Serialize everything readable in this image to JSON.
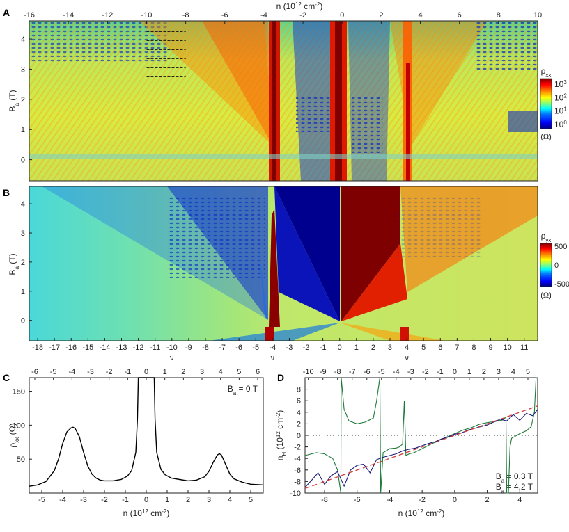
{
  "colors": {
    "jet": [
      "#00007f",
      "#0000ff",
      "#007fff",
      "#00ffff",
      "#7fff7f",
      "#ffff00",
      "#ff7f00",
      "#ff0000",
      "#7f0000"
    ],
    "green_trace": "#1f7a3a",
    "blue_trace": "#1a1a7a",
    "fit_line": "#d23a3a"
  },
  "chart_data": [
    {
      "panel": "A",
      "type": "heatmap",
      "title": "",
      "xlabel_top": "n (10^12 cm^-2)",
      "ylabel": "B_a (T)",
      "x_top_ticks": [
        "-16",
        "-14",
        "-12",
        "-10",
        "-8",
        "-6",
        "-4",
        "-2",
        "0",
        "2",
        "4",
        "6",
        "8",
        "10"
      ],
      "x_top_range": [
        -16,
        10
      ],
      "y_ticks": [
        "0",
        "1",
        "2",
        "3",
        "4"
      ],
      "ylim": [
        -0.7,
        4.6
      ],
      "colorbar": {
        "label": "ρxx",
        "unit": "(Ω)",
        "ticks": [
          "10^3",
          "10^2",
          "10^1",
          "10^0"
        ],
        "scale": "log"
      },
      "features": {
        "resistive_peaks_n": [
          -3.6,
          0,
          3.6
        ],
        "dashed_marker_levels_T": [
          2.75,
          3.05,
          3.35,
          3.65,
          3.95,
          4.25
        ]
      }
    },
    {
      "panel": "B",
      "type": "heatmap",
      "title": "",
      "ylabel": "B_a (T)",
      "xlabel": "ν",
      "x_ticks": [
        "-18",
        "-17",
        "-16",
        "-15",
        "-14",
        "-13",
        "-12",
        "-11",
        "-10",
        "-9",
        "-8",
        "-7",
        "-6",
        "-5",
        "-4",
        "-3",
        "-2",
        "-1",
        "0",
        "1",
        "2",
        "3",
        "4",
        "5",
        "6",
        "7",
        "8",
        "9",
        "10",
        "11"
      ],
      "x_range": [
        -18.5,
        11.8
      ],
      "y_ticks": [
        "0",
        "1",
        "2",
        "3",
        "4"
      ],
      "ylim": [
        -0.7,
        4.6
      ],
      "colorbar": {
        "label": "ρyx",
        "unit": "(Ω)",
        "ticks": [
          "500",
          "0",
          "-500"
        ],
        "range": [
          -500,
          500
        ]
      }
    },
    {
      "panel": "C",
      "type": "line",
      "title": "",
      "xlabel": "n (10^12 cm^-2)",
      "ylabel": "ρxx (Ω)",
      "x2label": "ν",
      "annotation": "B_a = 0 T",
      "x_ticks": [
        "-5",
        "-4",
        "-3",
        "-2",
        "-1",
        "0",
        "1",
        "2",
        "3",
        "4",
        "5"
      ],
      "x2_ticks": [
        "-6",
        "-5",
        "-4",
        "-3",
        "-2",
        "-1",
        "0",
        "1",
        "2",
        "3",
        "4",
        "5",
        "6"
      ],
      "y_ticks": [
        "50",
        "100",
        "150"
      ],
      "xlim": [
        -5.6,
        5.6
      ],
      "ylim": [
        0,
        170
      ],
      "series": [
        {
          "x": [
            -5.6,
            -5.2,
            -4.8,
            -4.4,
            -4.2,
            -4.0,
            -3.8,
            -3.6,
            -3.5,
            -3.4,
            -3.2,
            -3.0,
            -2.8,
            -2.6,
            -2.4,
            -2.2,
            -2.0,
            -1.6,
            -1.2,
            -0.9,
            -0.7,
            -0.5,
            -0.42,
            -0.38,
            0.38,
            0.42,
            0.5,
            0.7,
            0.9,
            1.2,
            1.6,
            2.0,
            2.4,
            2.8,
            3.0,
            3.2,
            3.4,
            3.5,
            3.6,
            3.8,
            4.0,
            4.2,
            4.6,
            5.0,
            5.6
          ],
          "values": [
            10,
            12,
            17,
            33,
            50,
            73,
            90,
            96,
            97,
            95,
            83,
            60,
            40,
            28,
            22,
            19,
            18,
            18,
            20,
            25,
            33,
            60,
            110,
            170,
            170,
            110,
            60,
            35,
            27,
            22,
            20,
            18,
            19,
            24,
            32,
            45,
            56,
            58,
            56,
            42,
            28,
            21,
            16,
            13,
            12
          ]
        }
      ]
    },
    {
      "panel": "D",
      "type": "line",
      "title": "",
      "xlabel": "n (10^12 cm^-2)",
      "ylabel": "n_H (10^12 cm^-2)",
      "x2label": "ν",
      "x_ticks": [
        "-8",
        "-6",
        "-4",
        "-2",
        "0",
        "2",
        "4"
      ],
      "x2_ticks": [
        "-10",
        "-9",
        "-8",
        "-7",
        "-6",
        "-5",
        "-4",
        "-3",
        "-2",
        "-1",
        "0",
        "1",
        "2",
        "3",
        "4",
        "5"
      ],
      "y_ticks": [
        "-10",
        "-8",
        "-6",
        "-4",
        "-2",
        "0",
        "2",
        "4",
        "6",
        "8"
      ],
      "xlim": [
        -9.2,
        5.1
      ],
      "ylim": [
        -10,
        10
      ],
      "legend": [
        "B_a = 0.3 T",
        "B_a = 4.2 T"
      ],
      "series": [
        {
          "name": "B_a = 0.3 T",
          "x": [
            -9.2,
            -8.5,
            -8.0,
            -7.5,
            -7.2,
            -7.0,
            -6.98,
            -6.8,
            -6.5,
            -6.0,
            -5.5,
            -5.0,
            -4.8,
            -4.6,
            -4.55,
            -4.4,
            -4.0,
            -3.6,
            -3.4,
            -3.2,
            -3.1,
            -3.0,
            -2.8,
            -2.5,
            -2.0,
            -1.5,
            -1.0,
            -0.5,
            0.0,
            0.5,
            1.0,
            1.5,
            2.0,
            2.5,
            3.0,
            3.15,
            3.2,
            3.3,
            3.4,
            3.5,
            3.7,
            4.0,
            4.4,
            4.7,
            4.9,
            5.0,
            5.1
          ],
          "values": [
            -3.5,
            -3.0,
            -3.2,
            -4.0,
            -6.0,
            -10,
            10,
            4.5,
            2.5,
            2.0,
            2.3,
            3.0,
            6.0,
            10,
            -10,
            -3.0,
            -2.3,
            -2.2,
            -2.0,
            -1.5,
            6.0,
            -3.5,
            -3.2,
            -3.0,
            -2.3,
            -1.6,
            -0.9,
            -0.3,
            0.3,
            0.9,
            1.3,
            1.9,
            2.2,
            2.4,
            2.7,
            3.2,
            -10,
            -10,
            -2.0,
            -0.5,
            -0.2,
            0.3,
            0.8,
            1.5,
            4.0,
            10,
            10
          ]
        },
        {
          "name": "B_a = 4.2 T",
          "x": [
            -9.2,
            -8.8,
            -8.4,
            -8.0,
            -7.6,
            -7.2,
            -6.8,
            -6.4,
            -6.0,
            -5.6,
            -5.2,
            -4.8,
            -4.4,
            -4.0,
            -3.6,
            -3.2,
            -2.8,
            -2.4,
            -2.0,
            -1.6,
            -1.2,
            -0.8,
            -0.4,
            0.0,
            0.4,
            0.8,
            1.2,
            1.6,
            2.0,
            2.4,
            2.8,
            3.2,
            3.6,
            4.0,
            4.4,
            4.8,
            5.1
          ],
          "values": [
            -9.0,
            -7.8,
            -6.5,
            -8.5,
            -7.0,
            -6.3,
            -8.8,
            -6.0,
            -5.2,
            -5.0,
            -6.5,
            -4.2,
            -3.8,
            -3.5,
            -3.2,
            -2.7,
            -2.4,
            -2.2,
            -1.8,
            -1.4,
            -1.1,
            -0.6,
            -0.3,
            0.2,
            0.4,
            0.9,
            1.2,
            1.5,
            1.8,
            2.3,
            2.8,
            2.5,
            3.6,
            2.6,
            3.8,
            3.4,
            4.5
          ]
        },
        {
          "name": "",
          "x": [
            -9.2,
            5.1
          ],
          "values": [
            -9.2,
            5.1
          ],
          "style": "dashed-fit"
        }
      ]
    }
  ],
  "labels": {
    "panel_a": "A",
    "panel_b": "B",
    "panel_c": "C",
    "panel_d": "D",
    "top_axis_title": "n (10",
    "nu_label": "ν"
  }
}
